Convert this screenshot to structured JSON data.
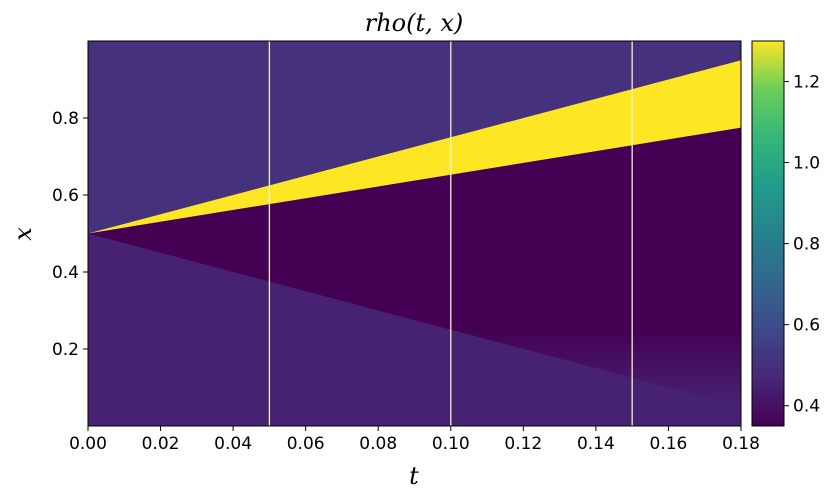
{
  "chart_data": {
    "type": "heatmap",
    "title": "rho(t, x)",
    "xlabel": "t",
    "ylabel": "x",
    "xlim": [
      0.0,
      0.18
    ],
    "ylim": [
      0.0,
      1.0
    ],
    "x_ticks": [
      "0.00",
      "0.02",
      "0.04",
      "0.06",
      "0.08",
      "0.10",
      "0.12",
      "0.14",
      "0.16",
      "0.18"
    ],
    "x_tick_values": [
      0.0,
      0.02,
      0.04,
      0.06,
      0.08,
      0.1,
      0.12,
      0.14,
      0.16,
      0.18
    ],
    "y_ticks": [
      "0.2",
      "0.4",
      "0.6",
      "0.8"
    ],
    "y_tick_values": [
      0.2,
      0.4,
      0.6,
      0.8
    ],
    "colormap": "viridis",
    "color_range": [
      0.35,
      1.3
    ],
    "colorbar_ticks": [
      "0.4",
      "0.6",
      "0.8",
      "1.0",
      "1.2"
    ],
    "colorbar_tick_values": [
      0.4,
      0.6,
      0.8,
      1.0,
      1.2
    ],
    "vertical_lines_t": [
      0.05,
      0.1,
      0.15
    ],
    "regions": {
      "upper_state_rho": 0.5,
      "shock_band_rho": 1.3,
      "middle_state_rho": 0.35,
      "lower_state_rho": 0.45,
      "shock_upper_x_start": 0.5,
      "shock_upper_x_end": 0.95,
      "shock_lower_x_start": 0.5,
      "shock_lower_x_end": 0.775,
      "rarefaction_head_x_end": 0.05,
      "rarefaction_tail_x_end": 0.25
    },
    "grid": false
  }
}
